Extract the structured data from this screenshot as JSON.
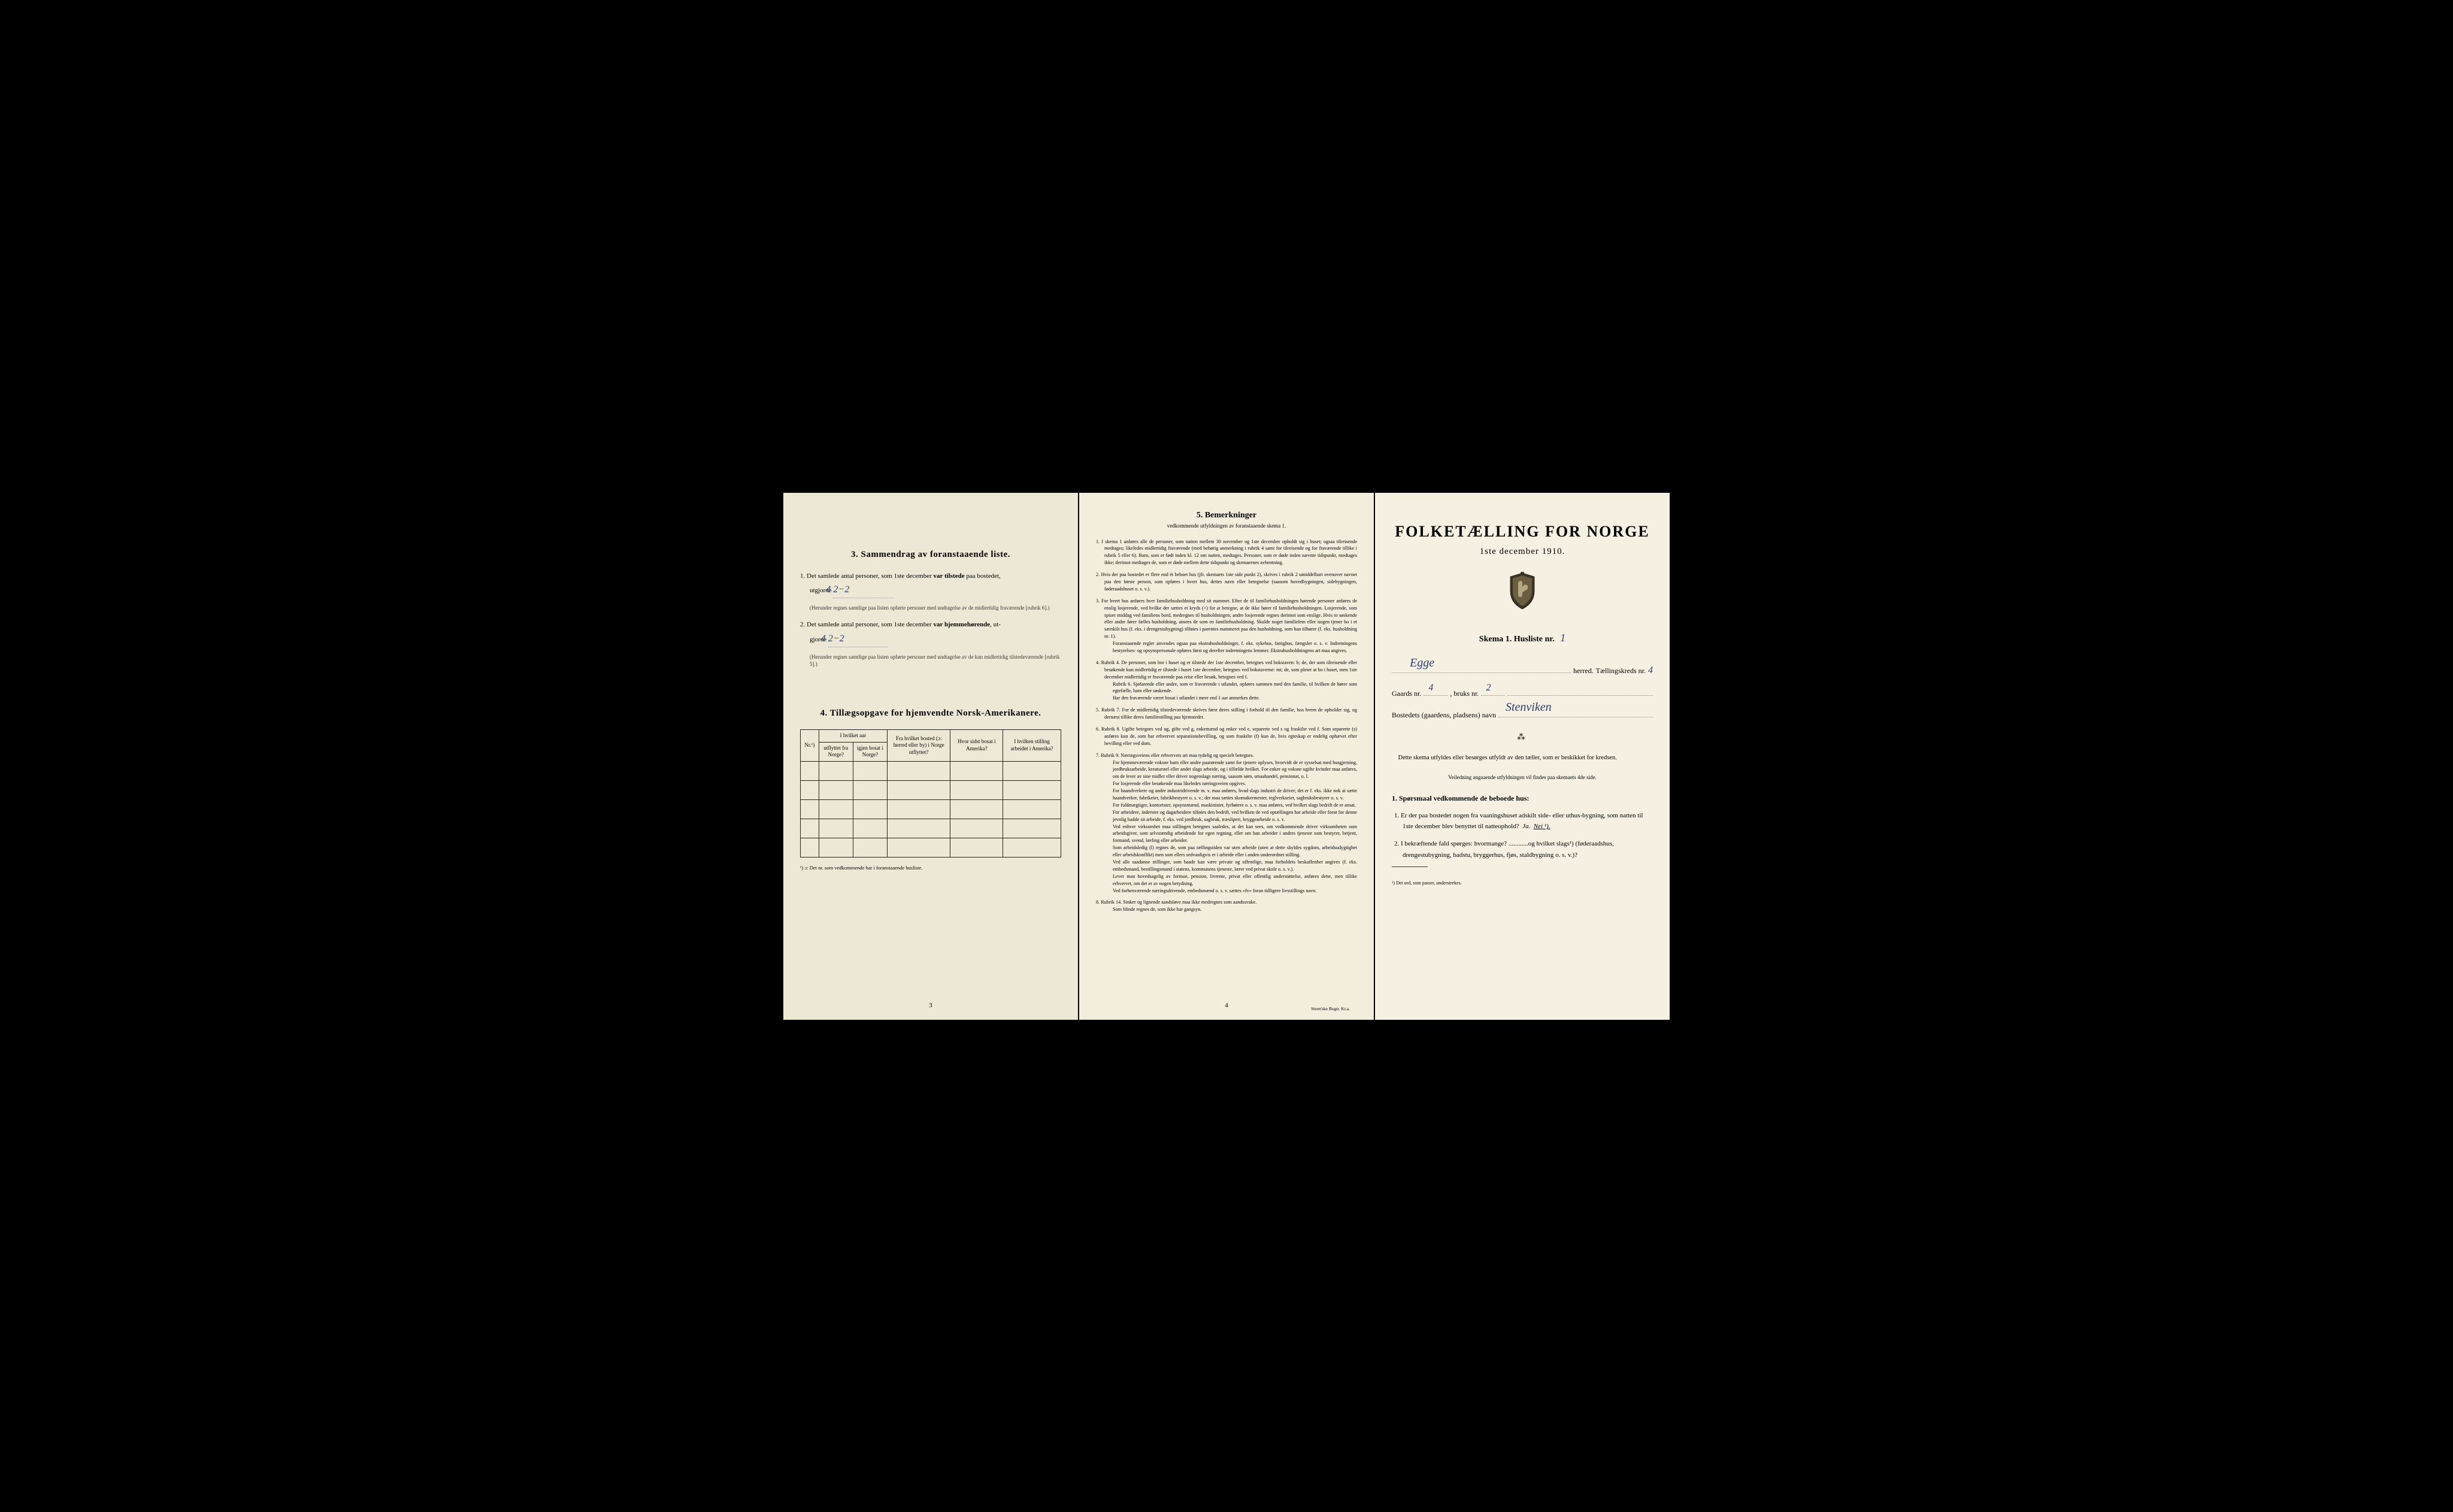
{
  "page1": {
    "section3_title": "3.   Sammendrag av foranstaaende liste.",
    "item1_prefix": "1. Det samlede antal personer, som 1ste december",
    "item1_bold": "var tilstede",
    "item1_suffix": "paa bostedet,",
    "item1_line2": "utgjorde",
    "item1_value": "4  2−2",
    "item1_note": "(Herunder regnes samtlige paa listen opførte personer med undtagelse av de midlertidig fraværende [rubrik 6].)",
    "item2_prefix": "2. Det samlede antal personer, som 1ste december",
    "item2_bold": "var hjemmehørende",
    "item2_suffix": ", ut-",
    "item2_line2": "gjorde",
    "item2_value": "4  2−2",
    "item2_note": "(Herunder regnes samtlige paa listen opførte personer med undtagelse av de kun midlertidig tilstedeværende [rubrik 5].)",
    "section4_title": "4.   Tillægsopgave for hjemvendte Norsk-Amerikanere.",
    "table_headers": {
      "col1": "Nr.¹)",
      "col2_top": "I hvilket aar",
      "col2a": "utflyttet fra Norge?",
      "col2b": "igjen bosat i Norge?",
      "col3": "Fra hvilket bosted (ɔ: herred eller by) i Norge utflyttet?",
      "col4": "Hvor sidst bosat i Amerika?",
      "col5": "I hvilken stilling arbeidet i Amerika?"
    },
    "table_rows": 5,
    "footnote": "¹) ɔ: Det nr. som vedkommende har i foranstaaende husliste.",
    "page_num": "3"
  },
  "page2": {
    "title": "5.   Bemerkninger",
    "subtitle": "vedkommende utfyldningen av foranstaaende skema 1.",
    "items": [
      "1. I skema 1 anføres alle de personer, som natten mellem 30 november og 1ste december opholdt sig i huset; ogsaa tilreisende medtages; likeledes midlertidig fraværende (med behørig anmerkning i rubrik 4 samt for tilreisende og for fraværende tillike i rubrik 5 eller 6). Barn, som er født inden kl. 12 om natten, medtages. Personer, som er døde inden nævnte tidspunkt, medtages ikke; derimot medtages de, som er døde mellem dette tidspunkt og skemaernes avhentning.",
      "2. Hvis der paa bostedet er flere end ét beboet hus (jfr. skemaets 1ste side punkt 2), skrives i rubrik 2 umiddelbart ovenover navnet paa den første person, som opføres i hvert hus, dettes navn eller betegnelse (saasom hovedbygningen, sidebygningen, føderaadshuset o. s. v.).",
      "3. For hvert hus anføres hver familiehusholdning med sit nummer. Efter de til familiehusholdningen hørende personer anføres de enslig losjerende, ved hvilke der sættes et kryds (×) for at betegne, at de ikke hører til familiehusholdningen. Losjerende, som spiser middag ved familiens bord, medregnes til husholdningen; andre losjerende regnes derimot som enslige. Hvis to søskende eller andre fører fælles husholdning, ansees de som en familiehusholdning. Skulde noget familielem eller nogen tjener bo i et særskilt hus (f. eks. i drengestubygning) tilføies i parentes nummeret paa den husholdning, som han tilhører (f. eks. husholdning nr. 1).\n   Foranstaaende regler anvendes ogsaa paa ekstrahusholdninger, f. eks. sykehus, fattighus, fængsler o. s. v. Indretningens bestyrelses- og opsynspersonale opføres først og derefter indretningens lemmer. Ekstrahusholdningens art maa angives.",
      "4. Rubrik 4. De personer, som bor i huset og er tilstede der 1ste december, betegnes ved bokstaven: b; de, der som tilreisende eller besøkende kun midlertidig er tilstede i huset 1ste december, betegnes ved bokstaverne: mt; de, som pleier at bo i huset, men 1ste december midlertidig er fraværende paa reise eller besøk, betegnes ved f.\n   Rubrik 6. Sjøfarende eller andre, som er fraværende i utlandet, opføres sammen med den familie, til hvilken de hører som egtefælle, barn eller søskende.\n   Har den fraværende været bosat i utlandet i mere end 1 aar anmerkes dette.",
      "5. Rubrik 7. For de midlertidig tilstedeværende skrives først deres stilling i forhold til den familie, hos hvem de opholder sig, og dernæst tillike deres familiestilling paa hjemstedet.",
      "6. Rubrik 8. Ugifte betegnes ved ug, gifte ved g, enkemænd og enker ved e, separerte ved s og fraskilte ved f. Som separerte (s) anføres kun de, som har erhvervet separationsbevilling, og som fraskilte (f) kun de, hvis egteskap er endelig ophævet efter bevilling eller ved dom.",
      "7. Rubrik 9. Næringsveiens eller erhvervets art maa tydelig og specielt betegnes.\n   For hjemmeværende voksne barn eller andre paarørende samt for tjenere oplyses, hvorvidt de er sysselsat med husgjerning, jordbruksarbeide, kreaturstel eller andet slags arbeide, og i tilfælde hvilket. For enker og voksne ugifte kvinder maa anføres, om de lever av sine midler eller driver nogenslags næring, saasom søm, smaahandel, pensionat, o. l.\n   For losjerende eller besøkende maa likeledes næringsveien opgives.\n   For haandverkere og andre industridrivende m. v. maa anføres, hvad slags industri de driver; det er f. eks. ikke nok at sætte haandverker, fabrikeier, fabrikbestyrer o. s. v.; der maa sættes skomakermester, teglverkseier, sagbruksbestyrer o. s. v.\n   For fuldmægtiger, kontorister, opsynsmænd, maskinister, fyrbøtere o. s. v. maa anføres, ved hvilket slags bedrift de er ansat.\n   For arbeidere, inderster og dagarbeidere tilføies den bedrift, ved hvilken de ved optællingen har arbeide eller forut for denne jevnlig hadde sit arbeide, f. eks. ved jordbruk, sagbruk, træsliperi, bryggearbeide o. s. v.\n   Ved enhver virksomhet maa stillingen betegnes saaledes, at det kan sees, om vedkommende driver virksomheten som arbeidsgiver, som selvstændig arbeidende for egen regning, eller om han arbeider i andres tjeneste som bestyrer, betjent, formand, svend, lærling eller arbeider.\n   Som arbeidsledig (l) regnes de, som paa tællingstiden var uten arbeide (uten at dette skyldes sygdom, arbeidsudygtighet eller arbeidskonflikt) men som ellers sedvanligvis er i arbeide eller i anden underordnet stilling.\n   Ved alle saadanne stillinger, som baade kan være private og offentlige, maa forholdets beskaffenhet angives (f. eks. embedsmand, bestillingsmand i statens, kommunens tjeneste, lærer ved privat skole o. s. v.).\n   Lever man hovedsagelig av formue, pension, livrente, privat eller offentlig understøttelse, anføres dette, men tillike erhvervet, om det er av nogen betydning.\n   Ved forhenværende næringsdrivende, embedsmænd o. s. v. sættes «fv» foran tidligere livsstillings navn.",
      "8. Rubrik 14. Sinker og lignende aandsløve maa ikke medregnes som aandssvake.\n   Som blinde regnes de, som ikke har gangsyn."
    ],
    "page_num": "4",
    "printer": "Steen'ske Bogtr. Kr.a."
  },
  "page3": {
    "main_title": "FOLKETÆLLING FOR NORGE",
    "date": "1ste december 1910.",
    "skema_label": "Skema 1.   Husliste nr.",
    "husliste_nr": "1",
    "herred_value": "Egge",
    "herred_label": "herred.",
    "kreds_label": "Tællingskreds nr.",
    "kreds_value": "4",
    "gaards_label": "Gaards nr.",
    "gaards_value": "4",
    "bruks_label": ", bruks nr.",
    "bruks_value": "2",
    "bosted_label": "Bostedets (gaardens, pladsens) navn",
    "bosted_value": "Stenviken",
    "instruction1": "Dette skema utfyldes eller besørges utfyldt av den tæller, som er beskikket for kredsen.",
    "instruction2": "Veiledning angaaende utfyldningen vil findes paa skemaets 4de side.",
    "q_title": "1. Spørsmaal vedkommende de beboede hus:",
    "q1": "1. Er der paa bostedet nogen fra vaaningshuset adskilt side- eller uthus-bygning, som natten til 1ste december blev benyttet til natteophold?",
    "q1_ja": "Ja.",
    "q1_nei": "Nei ¹).",
    "q2": "2. I bekræftende fald spørges: hvormange? ............og hvilket slags¹) (føderaadshus, drengestubygning, badstu, bryggerhus, fjøs, staldbygning o. s. v.)?",
    "footnote": "¹) Det ord, som passer, understrekes."
  }
}
